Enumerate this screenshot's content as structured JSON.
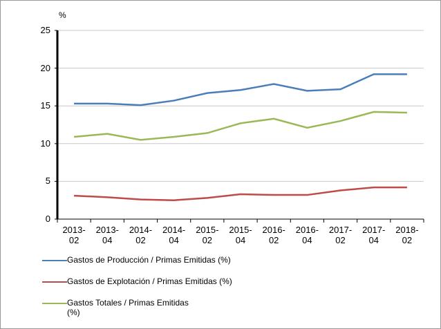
{
  "chart_data": {
    "type": "line",
    "y_label": "%",
    "categories": [
      "2013-02",
      "2013-04",
      "2014-02",
      "2014-04",
      "2015-02",
      "2015-04",
      "2016-02",
      "2016-04",
      "2017-02",
      "2017-04",
      "2018-02"
    ],
    "series": [
      {
        "name": "Gastos de Producción / Primas Emitidas (%)",
        "color": "#4a7ebb",
        "values": [
          15.3,
          15.3,
          15.1,
          15.7,
          16.7,
          17.1,
          17.9,
          17.0,
          17.2,
          19.2,
          19.2
        ]
      },
      {
        "name": "Gastos de Explotación / Primas Emitidas  (%)",
        "color": "#be4b48",
        "values": [
          3.1,
          2.9,
          2.6,
          2.5,
          2.8,
          3.3,
          3.2,
          3.2,
          3.8,
          4.2,
          4.2
        ]
      },
      {
        "name": "Gastos Totales / Primas Emitidas\n(%)",
        "color": "#98b954",
        "values": [
          10.9,
          11.3,
          10.5,
          10.9,
          11.4,
          12.7,
          13.3,
          12.1,
          13.0,
          14.2,
          14.1
        ]
      }
    ],
    "ylim": [
      0,
      25
    ],
    "yticks": [
      0,
      5,
      10,
      15,
      20,
      25
    ],
    "grid": true
  }
}
